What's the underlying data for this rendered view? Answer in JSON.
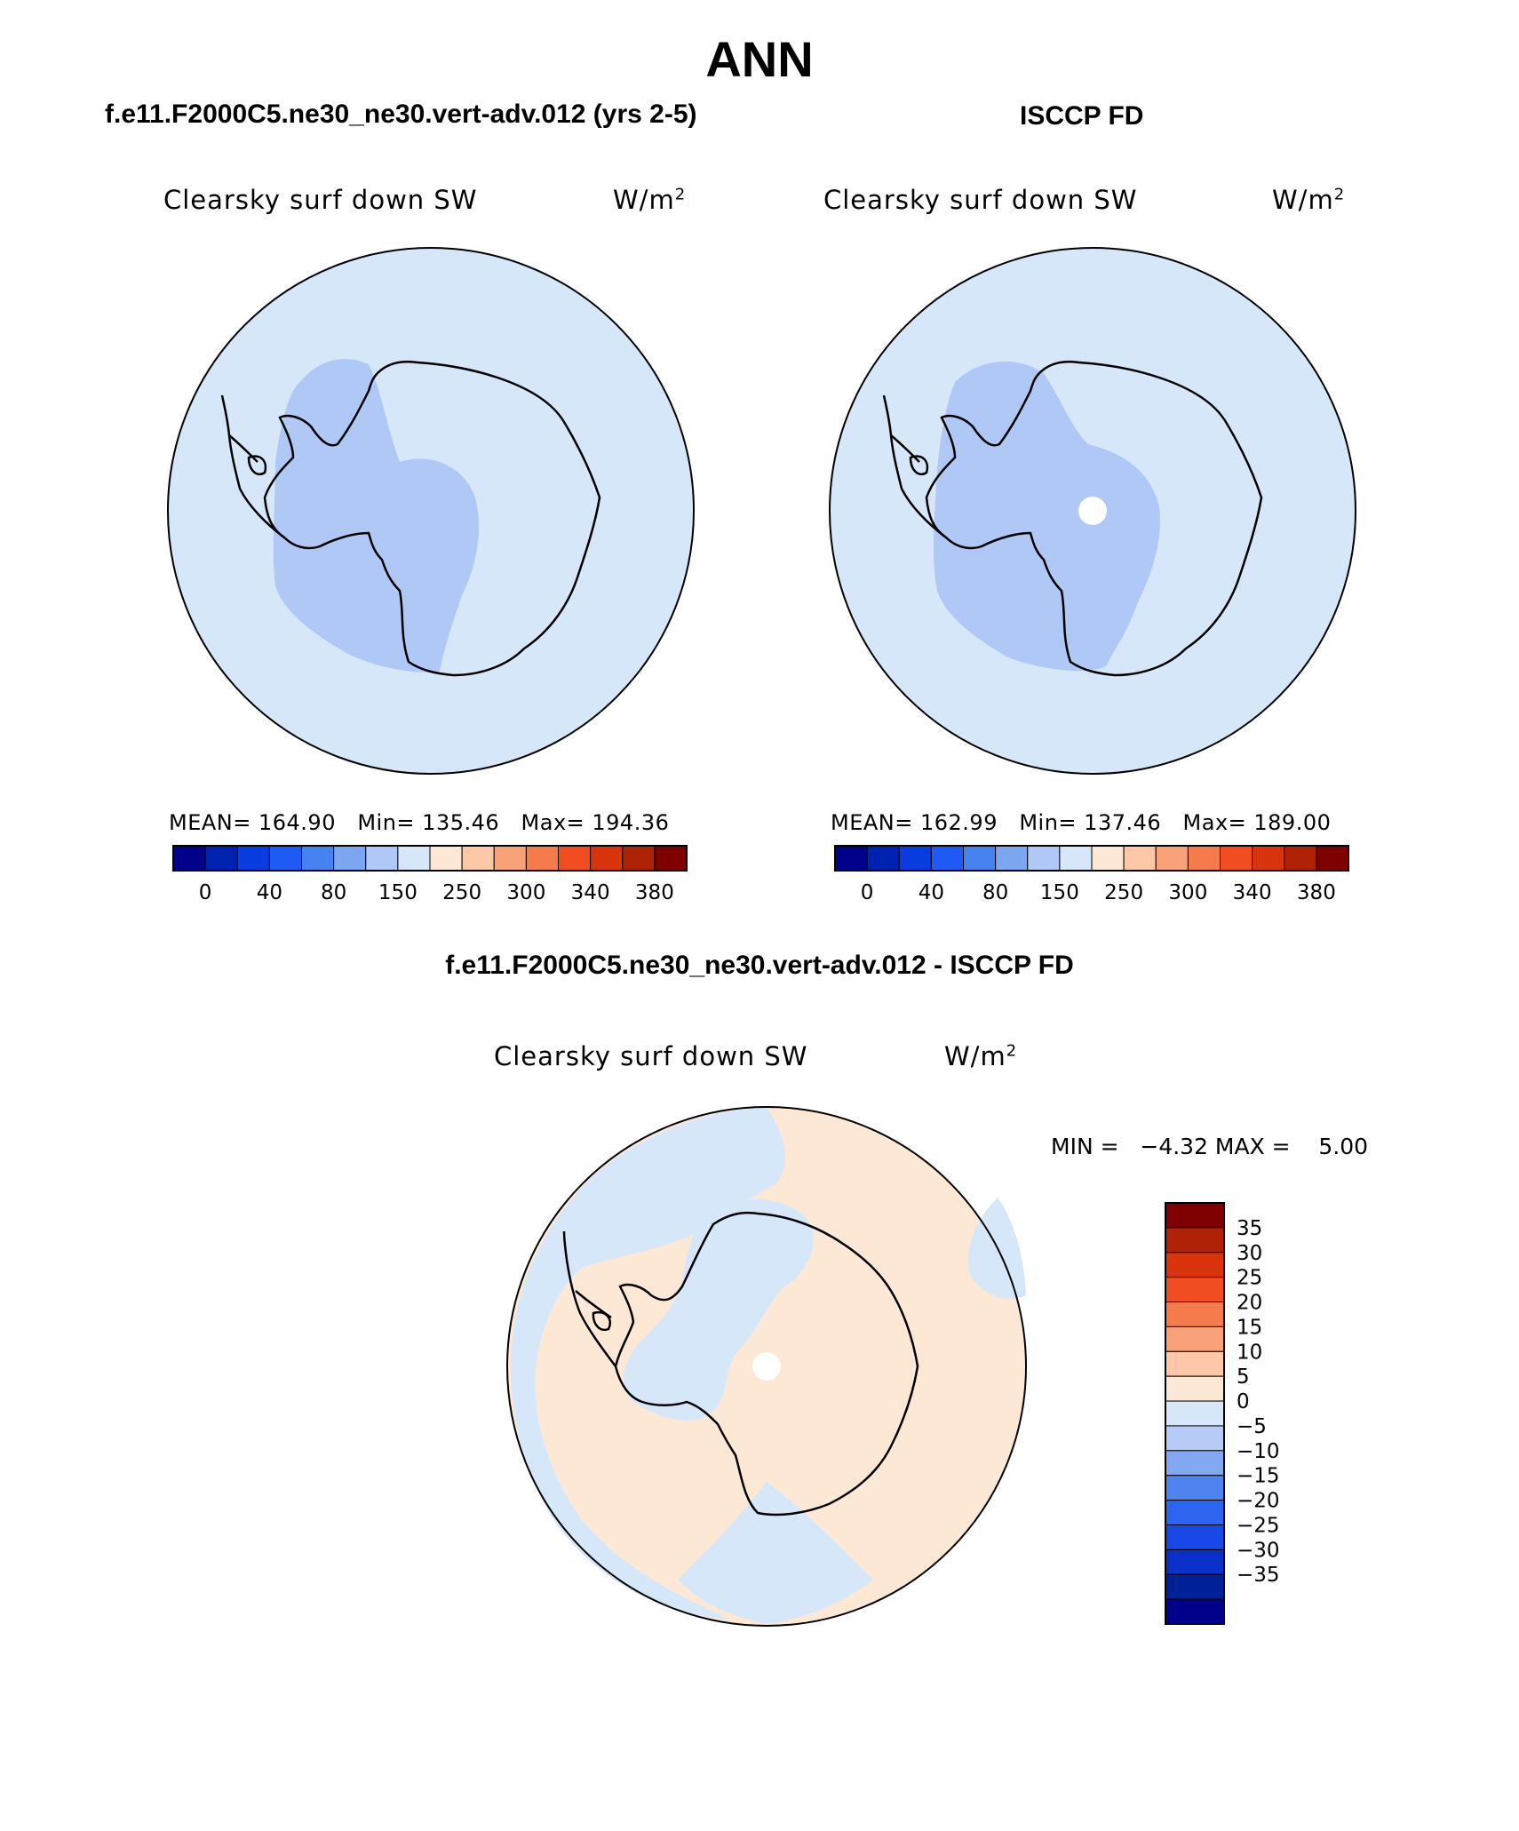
{
  "title": "ANN",
  "panels": [
    {
      "case": "f.e11.F2000C5.ne30_ne30.vert-adv.012 (yrs 2-5)",
      "variable": "Clearsky surf down SW",
      "units_base": "W/m",
      "units_exp": "2",
      "stats": "MEAN= 164.90   Min= 135.46   Max= 194.36",
      "colorbar_ticks": [
        "0",
        "40",
        "80",
        "150",
        "250",
        "300",
        "340",
        "380"
      ]
    },
    {
      "case": "ISCCP FD",
      "variable": "Clearsky surf down SW",
      "units_base": "W/m",
      "units_exp": "2",
      "stats": "MEAN= 162.99   Min= 137.46   Max= 189.00",
      "colorbar_ticks": [
        "0",
        "40",
        "80",
        "150",
        "250",
        "300",
        "340",
        "380"
      ]
    }
  ],
  "diff": {
    "title": "f.e11.F2000C5.ne30_ne30.vert-adv.012 - ISCCP FD",
    "variable": "Clearsky surf down SW",
    "units_base": "W/m",
    "units_exp": "2",
    "minmax": "MIN =   −4.32 MAX =    5.00",
    "colorbar_ticks": [
      "35",
      "30",
      "25",
      "20",
      "15",
      "10",
      "5",
      "0",
      "−5",
      "−10",
      "−15",
      "−20",
      "−25",
      "−30",
      "−35"
    ]
  },
  "colors": {
    "main_colorbar": [
      "#00008b",
      "#0022b0",
      "#0a3de0",
      "#1f5af5",
      "#4682f0",
      "#7da6f0",
      "#b0c8f5",
      "#d7e7fa",
      "#fde8d6",
      "#fcc8a8",
      "#f9a27a",
      "#f57a4c",
      "#f04e22",
      "#d8340e",
      "#b02208",
      "#7e0000"
    ],
    "diff_colorbar": [
      "#00008b",
      "#00209a",
      "#0a30c8",
      "#1a48e6",
      "#2d64f0",
      "#4f84f0",
      "#82a8f2",
      "#b6ccf6",
      "#d7e7fa",
      "#fde8d6",
      "#fcc8a8",
      "#f9a27a",
      "#f57a4c",
      "#f04e22",
      "#d8340e",
      "#b02208",
      "#7e0000"
    ],
    "light_blue": "#d7e7fa",
    "medium_blue": "#b0c8f5",
    "light_peach": "#fde8d6"
  }
}
